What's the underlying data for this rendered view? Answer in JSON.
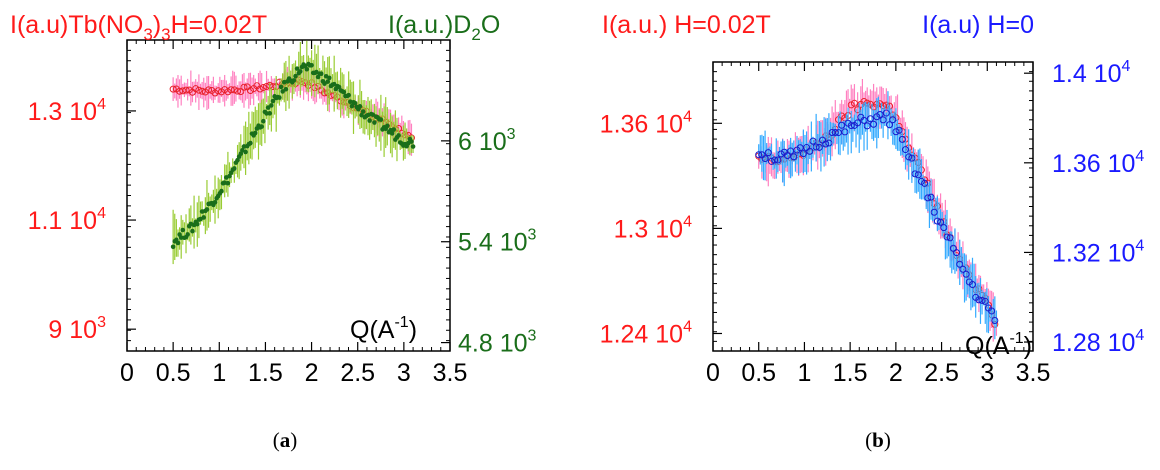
{
  "chart_data": [
    {
      "panel": "a",
      "type": "scatter",
      "caption": "(a)",
      "xlabel": "Q(A-1)",
      "xlim": [
        0,
        3.5
      ],
      "x_ticks": [
        "0",
        "0.5",
        "1",
        "1.5",
        "2",
        "2.5",
        "3",
        "3.5"
      ],
      "y_left": {
        "label": "I(a.u)Tb(NO3)3H=0.02T",
        "color": "#ff1a1a",
        "ylim": [
          8600,
          14300
        ],
        "ticks": [
          {
            "v": 9000,
            "m": "9",
            "e": "3"
          },
          {
            "v": 11000,
            "m": "1.1",
            "e": "4"
          },
          {
            "v": 13000,
            "m": "1.3",
            "e": "4"
          }
        ]
      },
      "y_right": {
        "label": "I(a.u.)D2O",
        "color": "#1a6e1a",
        "ylim": [
          4750,
          6600
        ],
        "ticks": [
          {
            "v": 4800,
            "m": "4.8",
            "e": "3"
          },
          {
            "v": 5400,
            "m": "5.4",
            "e": "3"
          },
          {
            "v": 6000,
            "m": "6",
            "e": "3"
          }
        ]
      },
      "series": [
        {
          "axis": "left",
          "color": "#e8202a",
          "error_color": "#ff80c0",
          "marker": "open-circle",
          "x": [
            0.5,
            0.7,
            0.9,
            1.1,
            1.3,
            1.5,
            1.7,
            1.9,
            2.0,
            2.2,
            2.4,
            2.6,
            2.8,
            3.0,
            3.1
          ],
          "y": [
            13400,
            13380,
            13360,
            13380,
            13400,
            13440,
            13500,
            13550,
            13480,
            13300,
            13150,
            12950,
            12800,
            12600,
            12450
          ]
        },
        {
          "axis": "right",
          "color": "#1a6e1a",
          "error_color": "#99cc33",
          "marker": "filled-dot",
          "x": [
            0.5,
            0.7,
            0.9,
            1.1,
            1.3,
            1.5,
            1.7,
            1.9,
            2.0,
            2.2,
            2.4,
            2.6,
            2.8,
            3.0,
            3.1
          ],
          "y": [
            5400,
            5480,
            5620,
            5780,
            5970,
            6150,
            6320,
            6440,
            6420,
            6350,
            6250,
            6150,
            6080,
            6000,
            5990
          ]
        }
      ]
    },
    {
      "panel": "b",
      "type": "scatter",
      "caption": "(b)",
      "xlabel": "Q(A-1)",
      "xlim": [
        0,
        3.5
      ],
      "x_ticks": [
        "0",
        "0.5",
        "1",
        "1.5",
        "2",
        "2.5",
        "3",
        "3.5"
      ],
      "y_left": {
        "label": "I(a.u.) H=0.02T",
        "color": "#ff1a1a",
        "ylim": [
          12300,
          13950
        ],
        "ticks": [
          {
            "v": 12400,
            "m": "1.24",
            "e": "4"
          },
          {
            "v": 13000,
            "m": "1.3",
            "e": "4"
          },
          {
            "v": 13600,
            "m": "1.36",
            "e": "4"
          }
        ]
      },
      "y_right": {
        "label": "I(a.u) H=0",
        "color": "#1a1aff",
        "ylim": [
          12760,
          14050
        ],
        "ticks": [
          {
            "v": 12800,
            "m": "1.28",
            "e": "4"
          },
          {
            "v": 13200,
            "m": "1.32",
            "e": "4"
          },
          {
            "v": 13600,
            "m": "1.36",
            "e": "4"
          },
          {
            "v": 14000,
            "m": "1.4",
            "e": "4"
          }
        ]
      },
      "series": [
        {
          "axis": "left",
          "color": "#e8202a",
          "error_color": "#ff80c0",
          "marker": "open-circle",
          "x": [
            0.5,
            0.7,
            0.9,
            1.1,
            1.3,
            1.5,
            1.7,
            1.9,
            2.0,
            2.1,
            2.3,
            2.5,
            2.7,
            2.9,
            3.0,
            3.1
          ],
          "y": [
            13400,
            13380,
            13420,
            13450,
            13550,
            13680,
            13720,
            13700,
            13650,
            13500,
            13300,
            13050,
            12800,
            12650,
            12600,
            12450
          ]
        },
        {
          "axis": "right",
          "color": "#1a1acc",
          "error_color": "#33aaff",
          "marker": "open-circle",
          "x": [
            0.5,
            0.7,
            0.9,
            1.1,
            1.3,
            1.5,
            1.7,
            1.9,
            2.0,
            2.1,
            2.3,
            2.5,
            2.7,
            2.9,
            3.0,
            3.1
          ],
          "y": [
            13650,
            13620,
            13630,
            13680,
            13720,
            13760,
            13790,
            13800,
            13760,
            13650,
            13500,
            13320,
            13150,
            13000,
            12950,
            12900
          ]
        }
      ]
    }
  ]
}
